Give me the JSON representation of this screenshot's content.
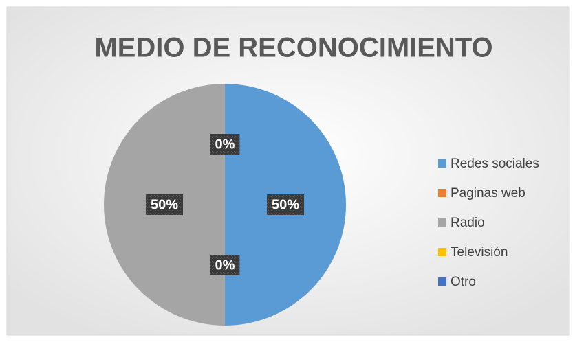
{
  "chart_data": {
    "type": "pie",
    "title": "MEDIO DE RECONOCIMIENTO",
    "categories": [
      "Redes sociales",
      "Paginas web",
      "Radio",
      "Televisión",
      "Otro"
    ],
    "values": [
      50,
      0,
      50,
      0,
      0
    ],
    "value_labels": [
      "50%",
      "0%",
      "50%",
      "0%",
      "0%"
    ],
    "colors": [
      "#5b9bd5",
      "#ed7d31",
      "#a5a5a5",
      "#ffc000",
      "#4472c4"
    ],
    "legend": "right"
  }
}
